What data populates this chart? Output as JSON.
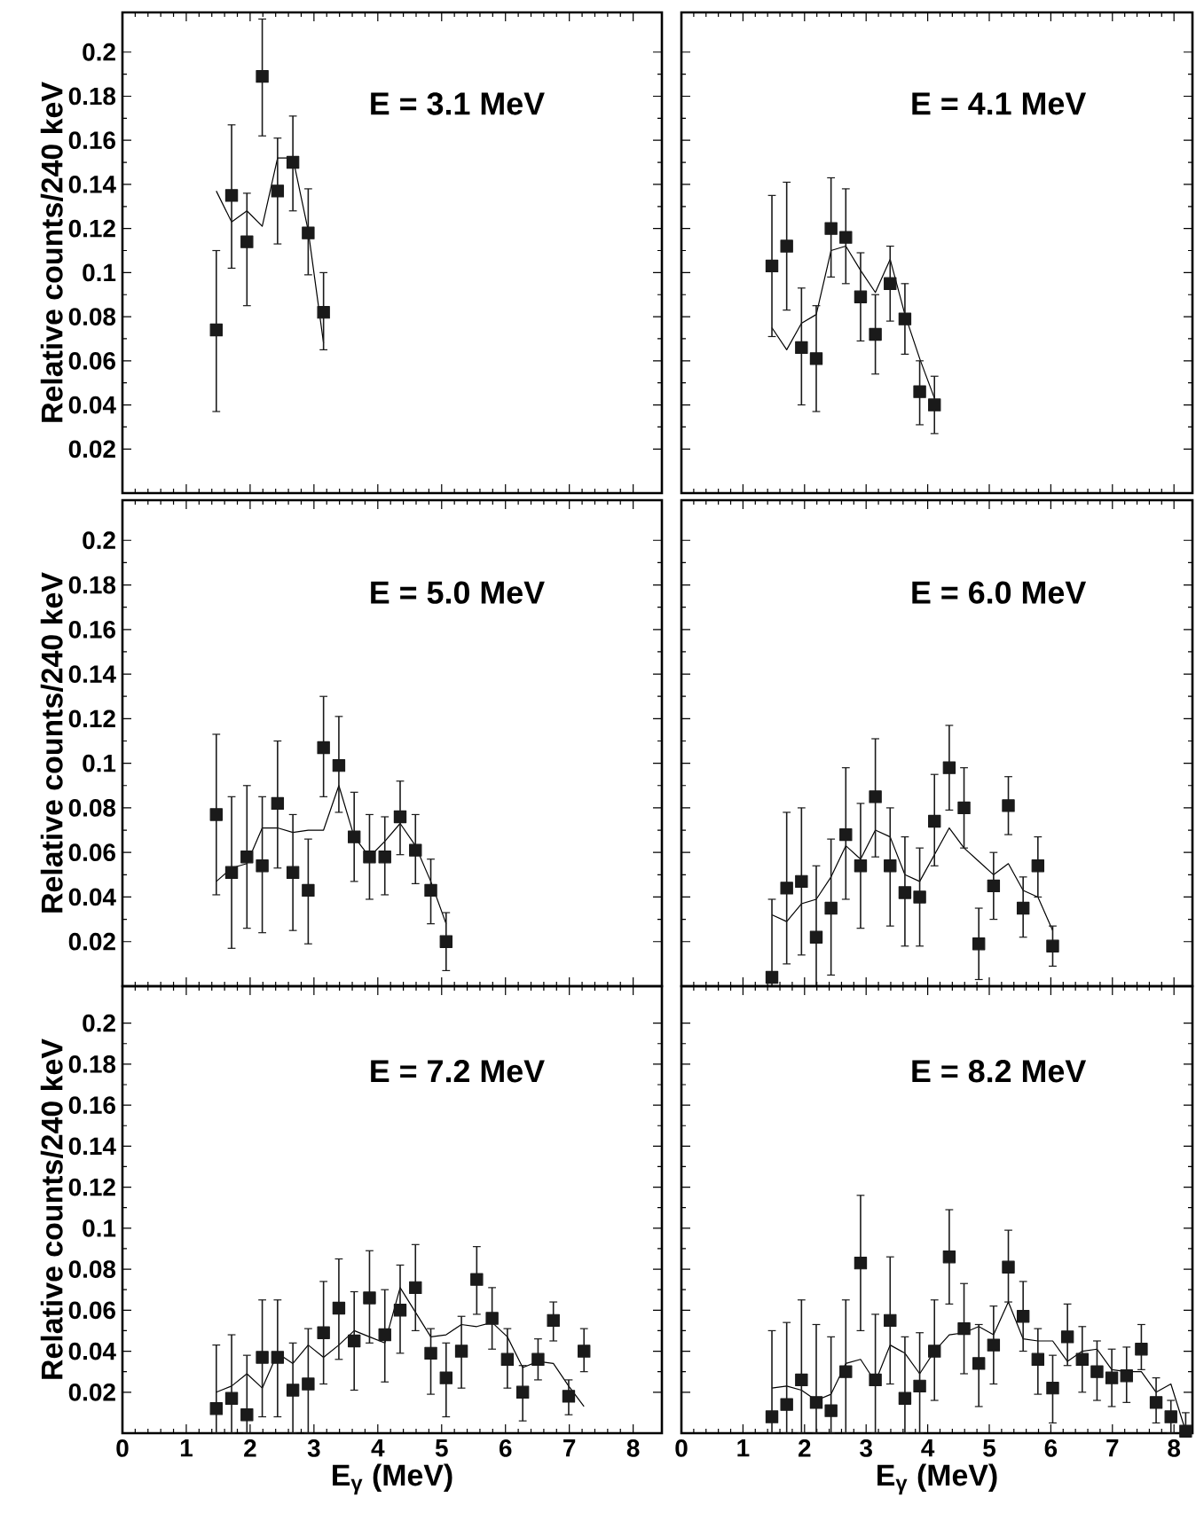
{
  "chart_data": [
    {
      "type": "scatter",
      "title": "E = 3.1 MeV",
      "ylabel": "Relative counts/240 keV",
      "xlim": [
        0,
        8.45
      ],
      "ylim": [
        0,
        0.218
      ],
      "xticks": [
        0,
        1,
        2,
        3,
        4,
        5,
        6,
        7,
        8
      ],
      "yticks": [
        0.02,
        0.04,
        0.06,
        0.08,
        0.1,
        0.12,
        0.14,
        0.16,
        0.18,
        0.2
      ],
      "tick_labels": "y",
      "series": [
        {
          "type": "line",
          "color": "#000000",
          "marker": "none",
          "x": [
            1.47,
            1.71,
            1.95,
            2.19,
            2.43,
            2.67,
            2.91,
            3.15
          ],
          "values": [
            0.137,
            0.123,
            0.128,
            0.121,
            0.152,
            0.152,
            0.119,
            0.068
          ]
        },
        {
          "type": "scatter",
          "color": "#1a1a1a",
          "marker": "square",
          "x": [
            1.47,
            1.71,
            1.95,
            2.19,
            2.43,
            2.67,
            2.91,
            3.15
          ],
          "values": [
            0.074,
            0.135,
            0.114,
            0.189,
            0.137,
            0.15,
            0.118,
            0.082
          ],
          "errors": [
            [
              0.037,
              0.11
            ],
            [
              0.102,
              0.167
            ],
            [
              0.085,
              0.136
            ],
            [
              0.162,
              0.215
            ],
            [
              0.113,
              0.161
            ],
            [
              0.128,
              0.171
            ],
            [
              0.099,
              0.138
            ],
            [
              0.065,
              0.1
            ]
          ]
        }
      ]
    },
    {
      "type": "scatter",
      "title": "E = 4.1 MeV",
      "xlim": [
        0,
        8.3
      ],
      "ylim": [
        0,
        0.218
      ],
      "xticks": [
        0,
        1,
        2,
        3,
        4,
        5,
        6,
        7,
        8
      ],
      "yticks": [
        0.02,
        0.04,
        0.06,
        0.08,
        0.1,
        0.12,
        0.14,
        0.16,
        0.18,
        0.2
      ],
      "tick_labels": false,
      "series": [
        {
          "type": "line",
          "color": "#000000",
          "marker": "none",
          "x": [
            1.47,
            1.71,
            1.95,
            2.19,
            2.43,
            2.67,
            2.91,
            3.15,
            3.39,
            3.63,
            3.87,
            4.11
          ],
          "values": [
            0.075,
            0.065,
            0.077,
            0.081,
            0.11,
            0.112,
            0.101,
            0.091,
            0.106,
            0.081,
            0.061,
            0.043
          ]
        },
        {
          "type": "scatter",
          "color": "#1a1a1a",
          "marker": "square",
          "x": [
            1.47,
            1.71,
            1.95,
            2.19,
            2.43,
            2.67,
            2.91,
            3.15,
            3.39,
            3.63,
            3.87,
            4.11
          ],
          "values": [
            0.103,
            0.112,
            0.066,
            0.061,
            0.12,
            0.116,
            0.089,
            0.072,
            0.095,
            0.079,
            0.046,
            0.04
          ],
          "errors": [
            [
              0.071,
              0.135
            ],
            [
              0.083,
              0.141
            ],
            [
              0.04,
              0.093
            ],
            [
              0.037,
              0.085
            ],
            [
              0.098,
              0.143
            ],
            [
              0.095,
              0.138
            ],
            [
              0.069,
              0.109
            ],
            [
              0.054,
              0.09
            ],
            [
              0.078,
              0.112
            ],
            [
              0.063,
              0.095
            ],
            [
              0.031,
              0.06
            ],
            [
              0.027,
              0.053
            ]
          ]
        }
      ]
    },
    {
      "type": "scatter",
      "title": "E = 5.0 MeV",
      "ylabel": "Relative counts/240 keV",
      "xlim": [
        0,
        8.45
      ],
      "ylim": [
        0,
        0.218
      ],
      "xticks": [
        0,
        1,
        2,
        3,
        4,
        5,
        6,
        7,
        8
      ],
      "yticks": [
        0.02,
        0.04,
        0.06,
        0.08,
        0.1,
        0.12,
        0.14,
        0.16,
        0.18,
        0.2
      ],
      "tick_labels": "y",
      "series": [
        {
          "type": "line",
          "color": "#000000",
          "marker": "none",
          "x": [
            1.47,
            1.71,
            1.95,
            2.19,
            2.43,
            2.67,
            2.91,
            3.15,
            3.39,
            3.63,
            3.87,
            4.11,
            4.35,
            4.59,
            4.83,
            5.07
          ],
          "values": [
            0.047,
            0.053,
            0.055,
            0.071,
            0.071,
            0.069,
            0.07,
            0.07,
            0.09,
            0.067,
            0.058,
            0.065,
            0.073,
            0.063,
            0.047,
            0.028
          ]
        },
        {
          "type": "scatter",
          "color": "#1a1a1a",
          "marker": "square",
          "x": [
            1.47,
            1.71,
            1.95,
            2.19,
            2.43,
            2.67,
            2.91,
            3.15,
            3.39,
            3.63,
            3.87,
            4.11,
            4.35,
            4.59,
            4.83,
            5.07
          ],
          "values": [
            0.077,
            0.051,
            0.058,
            0.054,
            0.082,
            0.051,
            0.043,
            0.107,
            0.099,
            0.067,
            0.058,
            0.058,
            0.076,
            0.061,
            0.043,
            0.02
          ],
          "errors": [
            [
              0.041,
              0.113
            ],
            [
              0.017,
              0.085
            ],
            [
              0.026,
              0.09
            ],
            [
              0.024,
              0.085
            ],
            [
              0.053,
              0.11
            ],
            [
              0.025,
              0.077
            ],
            [
              0.019,
              0.066
            ],
            [
              0.085,
              0.13
            ],
            [
              0.078,
              0.121
            ],
            [
              0.047,
              0.087
            ],
            [
              0.039,
              0.077
            ],
            [
              0.041,
              0.076
            ],
            [
              0.059,
              0.092
            ],
            [
              0.046,
              0.077
            ],
            [
              0.028,
              0.057
            ],
            [
              0.007,
              0.033
            ]
          ]
        }
      ]
    },
    {
      "type": "scatter",
      "title": "E = 6.0 MeV",
      "xlim": [
        0,
        8.3
      ],
      "ylim": [
        0,
        0.218
      ],
      "xticks": [
        0,
        1,
        2,
        3,
        4,
        5,
        6,
        7,
        8
      ],
      "yticks": [
        0.02,
        0.04,
        0.06,
        0.08,
        0.1,
        0.12,
        0.14,
        0.16,
        0.18,
        0.2
      ],
      "tick_labels": false,
      "series": [
        {
          "type": "line",
          "color": "#000000",
          "marker": "none",
          "x": [
            1.47,
            1.71,
            1.95,
            2.19,
            2.43,
            2.67,
            2.91,
            3.15,
            3.39,
            3.63,
            3.87,
            4.11,
            4.35,
            4.59,
            4.83,
            5.07,
            5.31,
            5.55,
            5.79,
            6.03
          ],
          "values": [
            0.032,
            0.029,
            0.037,
            0.039,
            0.049,
            0.063,
            0.057,
            0.07,
            0.067,
            0.05,
            0.047,
            0.059,
            0.071,
            0.062,
            0.056,
            0.05,
            0.055,
            0.043,
            0.04,
            0.025
          ]
        },
        {
          "type": "scatter",
          "color": "#1a1a1a",
          "marker": "square",
          "x": [
            1.47,
            1.71,
            1.95,
            2.19,
            2.43,
            2.67,
            2.91,
            3.15,
            3.39,
            3.63,
            3.87,
            4.11,
            4.35,
            4.59,
            4.83,
            5.07,
            5.31,
            5.55,
            5.79,
            6.03
          ],
          "values": [
            0.004,
            0.044,
            0.047,
            0.022,
            0.035,
            0.068,
            0.054,
            0.085,
            0.054,
            0.042,
            0.04,
            0.074,
            0.098,
            0.08,
            0.019,
            0.045,
            0.081,
            0.035,
            0.054,
            0.018
          ],
          "errors": [
            [
              0,
              0.039
            ],
            [
              0.01,
              0.078
            ],
            [
              0.014,
              0.08
            ],
            [
              0,
              0.054
            ],
            [
              0.005,
              0.066
            ],
            [
              0.039,
              0.098
            ],
            [
              0.026,
              0.082
            ],
            [
              0.058,
              0.111
            ],
            [
              0.027,
              0.08
            ],
            [
              0.018,
              0.067
            ],
            [
              0.018,
              0.062
            ],
            [
              0.054,
              0.095
            ],
            [
              0.079,
              0.117
            ],
            [
              0.062,
              0.098
            ],
            [
              0.003,
              0.035
            ],
            [
              0.03,
              0.06
            ],
            [
              0.068,
              0.094
            ],
            [
              0.022,
              0.049
            ],
            [
              0.04,
              0.067
            ],
            [
              0.009,
              0.027
            ]
          ]
        }
      ]
    },
    {
      "type": "scatter",
      "title": "E = 7.2 MeV",
      "xlabel": "E$_{γ}$ (MeV)",
      "ylabel": "Relative counts/240 keV",
      "xlim": [
        0,
        8.45
      ],
      "ylim": [
        0,
        0.218
      ],
      "xticks": [
        0,
        1,
        2,
        3,
        4,
        5,
        6,
        7,
        8
      ],
      "yticks": [
        0.02,
        0.04,
        0.06,
        0.08,
        0.1,
        0.12,
        0.14,
        0.16,
        0.18,
        0.2
      ],
      "series": [
        {
          "type": "line",
          "color": "#000000",
          "marker": "none",
          "x": [
            1.47,
            1.71,
            1.95,
            2.19,
            2.43,
            2.67,
            2.91,
            3.15,
            3.39,
            3.63,
            3.87,
            4.11,
            4.35,
            4.59,
            4.83,
            5.07,
            5.31,
            5.55,
            5.79,
            6.03,
            6.27,
            6.51,
            6.75,
            6.99,
            7.23
          ],
          "values": [
            0.02,
            0.023,
            0.029,
            0.022,
            0.039,
            0.034,
            0.043,
            0.037,
            0.043,
            0.05,
            0.047,
            0.044,
            0.071,
            0.059,
            0.047,
            0.048,
            0.053,
            0.052,
            0.054,
            0.047,
            0.032,
            0.035,
            0.034,
            0.023,
            0.013
          ]
        },
        {
          "type": "scatter",
          "color": "#1a1a1a",
          "marker": "square",
          "x": [
            1.47,
            1.71,
            1.95,
            2.19,
            2.43,
            2.67,
            2.91,
            3.15,
            3.39,
            3.63,
            3.87,
            4.11,
            4.35,
            4.59,
            4.83,
            5.07,
            5.31,
            5.55,
            5.79,
            6.03,
            6.27,
            6.51,
            6.75,
            6.99,
            7.23
          ],
          "values": [
            0.012,
            0.017,
            0.009,
            0.037,
            0.037,
            0.021,
            0.024,
            0.049,
            0.061,
            0.045,
            0.066,
            0.048,
            0.06,
            0.071,
            0.039,
            0.027,
            0.04,
            0.075,
            0.056,
            0.036,
            0.02,
            0.036,
            0.055,
            0.018,
            0.04
          ],
          "errors": [
            [
              0,
              0.043
            ],
            [
              0,
              0.048
            ],
            [
              0,
              0.038
            ],
            [
              0.008,
              0.065
            ],
            [
              0.008,
              0.065
            ],
            [
              0,
              0.044
            ],
            [
              0,
              0.051
            ],
            [
              0.024,
              0.074
            ],
            [
              0.036,
              0.085
            ],
            [
              0.021,
              0.069
            ],
            [
              0.044,
              0.089
            ],
            [
              0.025,
              0.07
            ],
            [
              0.039,
              0.082
            ],
            [
              0.05,
              0.092
            ],
            [
              0.019,
              0.051
            ],
            [
              0.008,
              0.044
            ],
            [
              0.022,
              0.057
            ],
            [
              0.058,
              0.091
            ],
            [
              0.041,
              0.071
            ],
            [
              0.022,
              0.051
            ],
            [
              0.006,
              0.033
            ],
            [
              0.026,
              0.046
            ],
            [
              0.045,
              0.064
            ],
            [
              0.009,
              0.026
            ],
            [
              0.03,
              0.051
            ]
          ]
        }
      ]
    },
    {
      "type": "scatter",
      "title": "E = 8.2 MeV",
      "xlabel": "E$_{γ}$ (MeV)",
      "xlim": [
        0,
        8.3
      ],
      "ylim": [
        0,
        0.218
      ],
      "xticks": [
        0,
        1,
        2,
        3,
        4,
        5,
        6,
        7,
        8
      ],
      "yticks": [
        0.02,
        0.04,
        0.06,
        0.08,
        0.1,
        0.12,
        0.14,
        0.16,
        0.18,
        0.2
      ],
      "tick_labels": "x",
      "series": [
        {
          "type": "line",
          "color": "#000000",
          "marker": "none",
          "x": [
            1.47,
            1.71,
            1.95,
            2.19,
            2.43,
            2.67,
            2.91,
            3.15,
            3.39,
            3.63,
            3.87,
            4.11,
            4.35,
            4.59,
            4.83,
            5.07,
            5.31,
            5.55,
            5.79,
            6.03,
            6.27,
            6.51,
            6.75,
            6.99,
            7.23,
            7.47,
            7.71,
            7.95,
            8.19
          ],
          "values": [
            0.022,
            0.023,
            0.021,
            0.016,
            0.019,
            0.034,
            0.036,
            0.025,
            0.043,
            0.039,
            0.029,
            0.04,
            0.048,
            0.049,
            0.052,
            0.048,
            0.064,
            0.046,
            0.045,
            0.045,
            0.035,
            0.04,
            0.041,
            0.031,
            0.03,
            0.03,
            0.02,
            0.024,
            0.001
          ]
        },
        {
          "type": "scatter",
          "color": "#1a1a1a",
          "marker": "square",
          "x": [
            1.47,
            1.71,
            1.95,
            2.19,
            2.43,
            2.67,
            2.91,
            3.15,
            3.39,
            3.63,
            3.87,
            4.11,
            4.35,
            4.59,
            4.83,
            5.07,
            5.31,
            5.55,
            5.79,
            6.03,
            6.27,
            6.51,
            6.75,
            6.99,
            7.23,
            7.47,
            7.71,
            7.95,
            8.19
          ],
          "values": [
            0.008,
            0.014,
            0.026,
            0.015,
            0.011,
            0.03,
            0.083,
            0.026,
            0.055,
            0.017,
            0.023,
            0.04,
            0.086,
            0.051,
            0.034,
            0.043,
            0.081,
            0.057,
            0.036,
            0.022,
            0.047,
            0.036,
            0.03,
            0.027,
            0.028,
            0.041,
            0.015,
            0.008,
            0.001
          ],
          "errors": [
            [
              0,
              0.05
            ],
            [
              0,
              0.054
            ],
            [
              0,
              0.065
            ],
            [
              0,
              0.053
            ],
            [
              0,
              0.047
            ],
            [
              0,
              0.065
            ],
            [
              0.05,
              0.116
            ],
            [
              0,
              0.058
            ],
            [
              0.024,
              0.086
            ],
            [
              0,
              0.047
            ],
            [
              0,
              0.049
            ],
            [
              0.016,
              0.065
            ],
            [
              0.063,
              0.109
            ],
            [
              0.029,
              0.073
            ],
            [
              0.013,
              0.053
            ],
            [
              0.024,
              0.062
            ],
            [
              0.064,
              0.099
            ],
            [
              0.04,
              0.074
            ],
            [
              0.019,
              0.051
            ],
            [
              0.005,
              0.038
            ],
            [
              0.033,
              0.063
            ],
            [
              0.02,
              0.052
            ],
            [
              0.016,
              0.045
            ],
            [
              0.013,
              0.041
            ],
            [
              0.015,
              0.042
            ],
            [
              0.031,
              0.053
            ],
            [
              0.005,
              0.027
            ],
            [
              0,
              0.016
            ],
            [
              0,
              0.01
            ]
          ]
        }
      ]
    }
  ]
}
